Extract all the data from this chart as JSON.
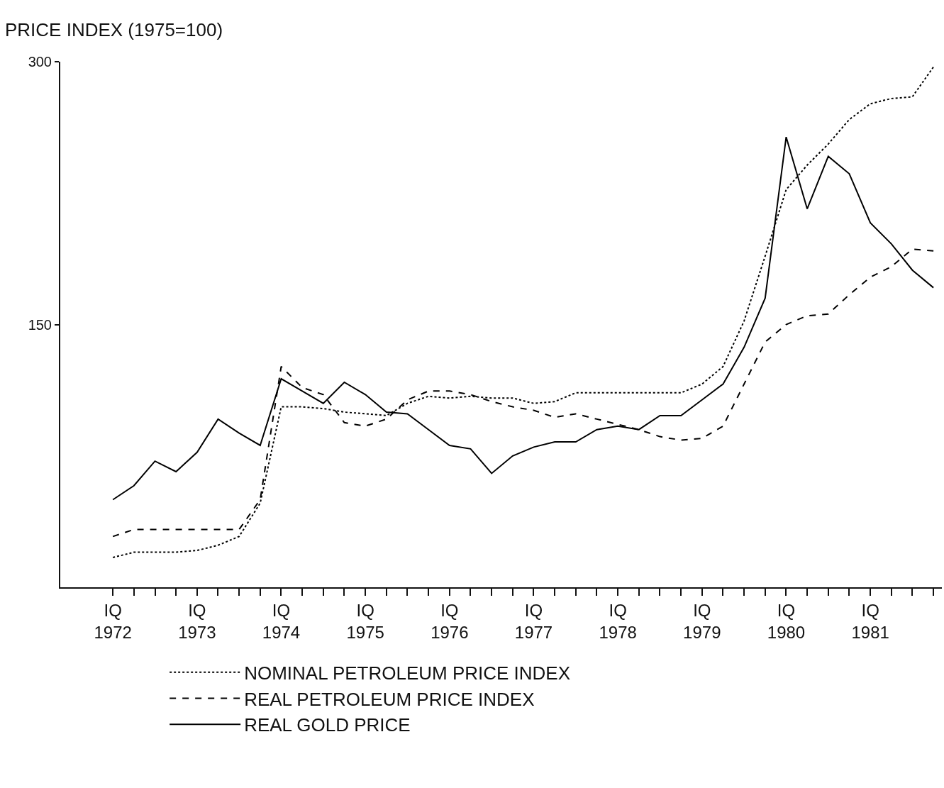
{
  "chart_data": {
    "type": "line",
    "ylabel": "PRICE INDEX (1975=100)",
    "categories": [
      "IQ\n1972",
      null,
      null,
      null,
      "IQ\n1973",
      null,
      null,
      null,
      "IQ\n1974",
      null,
      null,
      null,
      "IQ\n1975",
      null,
      null,
      null,
      "IQ\n1976",
      null,
      null,
      null,
      "IQ\n1977",
      null,
      null,
      null,
      "IQ\n1978",
      null,
      null,
      null,
      "IQ\n1979",
      null,
      null,
      null,
      "IQ\n1980",
      null,
      null,
      null,
      "IQ\n1981",
      null,
      null,
      null
    ],
    "series": [
      {
        "name": "NOMINAL PETROLEUM PRICE INDEX",
        "color": "#000000",
        "line_style": "dotted",
        "values": [
          17,
          20,
          20,
          20,
          21,
          24,
          29,
          48,
          103,
          103,
          102,
          100,
          99,
          98,
          105,
          109,
          108,
          109,
          108,
          108,
          105,
          106,
          111,
          111,
          111,
          111,
          111,
          111,
          116,
          126,
          152,
          189,
          227,
          241,
          253,
          267,
          276,
          279,
          280,
          297
        ]
      },
      {
        "name": "REAL PETROLEUM PRICE INDEX",
        "color": "#000000",
        "line_style": "dashed",
        "values": [
          29,
          33,
          33,
          33,
          33,
          33,
          33,
          50,
          126,
          114,
          110,
          94,
          92,
          96,
          107,
          112,
          112,
          110,
          106,
          103,
          101,
          97,
          99,
          96,
          93,
          90,
          86,
          84,
          85,
          92,
          116,
          140,
          150,
          155,
          156,
          167,
          177,
          183,
          193,
          192
        ]
      },
      {
        "name": "REAL GOLD PRICE",
        "color": "#000000",
        "line_style": "solid",
        "values": [
          50,
          58,
          72,
          66,
          77,
          96,
          88,
          81,
          119,
          112,
          105,
          117,
          110,
          100,
          99,
          90,
          81,
          79,
          65,
          75,
          80,
          83,
          83,
          90,
          92,
          90,
          98,
          98,
          107,
          116,
          137,
          165,
          257,
          216,
          246,
          236,
          208,
          196,
          181,
          171
        ]
      }
    ],
    "ylim": [
      0,
      300
    ],
    "yticks": [
      150,
      300
    ],
    "grid": false,
    "legend": "bottom",
    "marker": "none"
  }
}
